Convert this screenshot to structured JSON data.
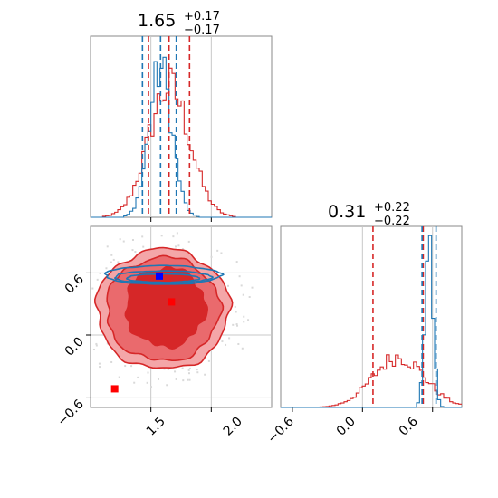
{
  "colors": {
    "red": "#d62728",
    "blue": "#1f77b4",
    "fill_light": "#f4a6a8",
    "fill_mid": "#ea6a6d",
    "fill_dark": "#d62728",
    "axis": "#888888",
    "grid": "#c8c8c8"
  },
  "chart_data": [
    {
      "panel": "top-left marginal (x1)",
      "type": "histogram",
      "title": {
        "value": "1.65",
        "plus": "+0.17",
        "minus": "−0.17"
      },
      "xlim": [
        1.0,
        2.5
      ],
      "ticks": [
        1.5,
        2.0
      ],
      "tick_labels": [
        "1.5",
        "2.0"
      ],
      "quantile_lines": [
        {
          "series": "red",
          "x": [
            1.48,
            1.65,
            1.82
          ]
        },
        {
          "series": "blue",
          "x": [
            1.43,
            1.58,
            1.71
          ]
        }
      ],
      "truth_lines": [
        1.5,
        2.0
      ],
      "series": [
        {
          "color": "red",
          "center": 1.65,
          "sigma": 0.17
        },
        {
          "color": "blue",
          "center": 1.58,
          "sigma": 0.095
        }
      ]
    },
    {
      "panel": "bottom-right marginal (x2)",
      "type": "histogram",
      "title": {
        "value": "0.31",
        "plus": "+0.22",
        "minus": "−0.22"
      },
      "xlim": [
        -0.7,
        0.85
      ],
      "ticks": [
        -0.6,
        0.0,
        0.6
      ],
      "tick_labels": [
        "−0.6",
        "0.0",
        "0.6"
      ],
      "quantile_lines": [
        {
          "series": "red",
          "x": [
            0.09,
            0.52
          ]
        },
        {
          "series": "blue",
          "x": [
            0.51,
            0.63
          ]
        }
      ],
      "truth_lines": [
        0.0,
        0.6
      ],
      "series": [
        {
          "color": "red",
          "center": 0.31,
          "sigma": 0.22
        },
        {
          "color": "blue",
          "center": 0.57,
          "sigma": 0.035
        }
      ]
    },
    {
      "panel": "bottom-left joint (x1 vs x2)",
      "type": "contour",
      "xlim": [
        1.0,
        2.5
      ],
      "ylim": [
        -0.7,
        1.05
      ],
      "xticks": [
        1.5,
        2.0
      ],
      "xtick_labels": [
        "1.5",
        "2.0"
      ],
      "yticks": [
        -0.6,
        0.0,
        0.6
      ],
      "ytick_labels": [
        "−0.6",
        "0.0",
        "0.6"
      ],
      "markers": [
        {
          "color": "blue",
          "x": 1.57,
          "y": 0.57
        },
        {
          "color": "red",
          "x": 1.67,
          "y": 0.32
        },
        {
          "color": "red",
          "x": 1.2,
          "y": -0.52
        }
      ],
      "red_contour_center": [
        1.6,
        0.25
      ],
      "blue_contour_center": [
        1.6,
        0.58
      ]
    }
  ]
}
